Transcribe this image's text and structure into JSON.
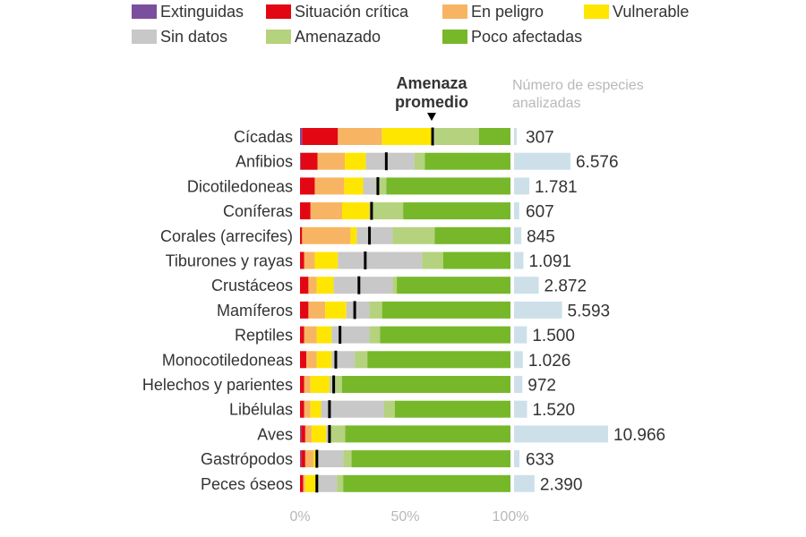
{
  "legend": [
    {
      "key": "extinguidas",
      "label": "Extinguidas",
      "color": "#7b4f9e"
    },
    {
      "key": "critica",
      "label": "Situación crítica",
      "color": "#e30613"
    },
    {
      "key": "peligro",
      "label": "En peligro",
      "color": "#f7b563"
    },
    {
      "key": "vulnerable",
      "label": "Vulnerable",
      "color": "#ffe600"
    },
    {
      "key": "sin_datos",
      "label": "Sin datos",
      "color": "#c8c8c8"
    },
    {
      "key": "amenazado",
      "label": "Amenazado",
      "color": "#b5d27e"
    },
    {
      "key": "poco",
      "label": "Poco afectadas",
      "color": "#76b82a"
    }
  ],
  "chart_data": {
    "type": "bar",
    "orientation": "horizontal",
    "stacked": true,
    "header_avg": [
      "Amenaza",
      "promedio"
    ],
    "header_count": [
      "Número de especies",
      "analizadas"
    ],
    "x_ticks": [
      "0%",
      "50%",
      "100%"
    ],
    "xlim": [
      0,
      100
    ],
    "categories": [
      "Cícadas",
      "Anfibios",
      "Dicotiledoneas",
      "Coníferas",
      "Corales (arrecifes)",
      "Tiburones y rayas",
      "Crustáceos",
      "Mamíferos",
      "Reptiles",
      "Monocotiledoneas",
      "Helechos y parientes",
      "Libélulas",
      "Aves",
      "Gastrópodos",
      "Peces óseos"
    ],
    "series": [
      {
        "name": "Extinguidas",
        "key": "extinguidas",
        "values": [
          1,
          0.3,
          0,
          0,
          0,
          0,
          0,
          0,
          0,
          0,
          0,
          0,
          0.5,
          0.5,
          0
        ]
      },
      {
        "name": "Situación crítica",
        "key": "critica",
        "values": [
          17,
          8,
          7,
          5,
          1,
          2,
          4,
          4,
          2,
          3,
          2,
          2,
          2,
          2,
          1.5
        ]
      },
      {
        "name": "En peligro",
        "key": "peligro",
        "values": [
          21,
          13,
          14,
          15,
          23,
          5,
          4,
          8,
          6,
          5,
          3,
          3,
          3,
          4,
          1
        ]
      },
      {
        "name": "Vulnerable",
        "key": "vulnerable",
        "values": [
          24,
          10,
          9,
          13,
          3,
          11,
          8,
          10,
          7,
          7,
          9,
          5,
          7,
          2,
          5
        ]
      },
      {
        "name": "Sin datos",
        "key": "sin_datos",
        "values": [
          1,
          23,
          6,
          1,
          17,
          40,
          28,
          11,
          18,
          11,
          1,
          30,
          1,
          12,
          10
        ]
      },
      {
        "name": "Amenazado",
        "key": "amenazado",
        "values": [
          21,
          5,
          5,
          15,
          20,
          10,
          2,
          6,
          5,
          6,
          5,
          5,
          8,
          4,
          3
        ]
      },
      {
        "name": "Poco afectadas",
        "key": "poco",
        "values": [
          15,
          40.7,
          59,
          51,
          36,
          32,
          54,
          61,
          62,
          68,
          80,
          55,
          78.5,
          75.5,
          79.5
        ]
      }
    ],
    "average": [
      63,
      41,
      37,
      34,
      33,
      31,
      28,
      26,
      19,
      17,
      16,
      14,
      14,
      8,
      8
    ],
    "counts": [
      307,
      6576,
      1781,
      607,
      845,
      1091,
      2872,
      5593,
      1500,
      1026,
      972,
      1520,
      10966,
      633,
      2390
    ],
    "count_labels": [
      "307",
      "6.576",
      "1.781",
      "607",
      "845",
      "1.091",
      "2.872",
      "5.593",
      "1.500",
      "1.026",
      "972",
      "1.520",
      "10.966",
      "633",
      "2.390"
    ],
    "count_bar_color": "#cde0ea",
    "average_marker_color": "#000000"
  }
}
